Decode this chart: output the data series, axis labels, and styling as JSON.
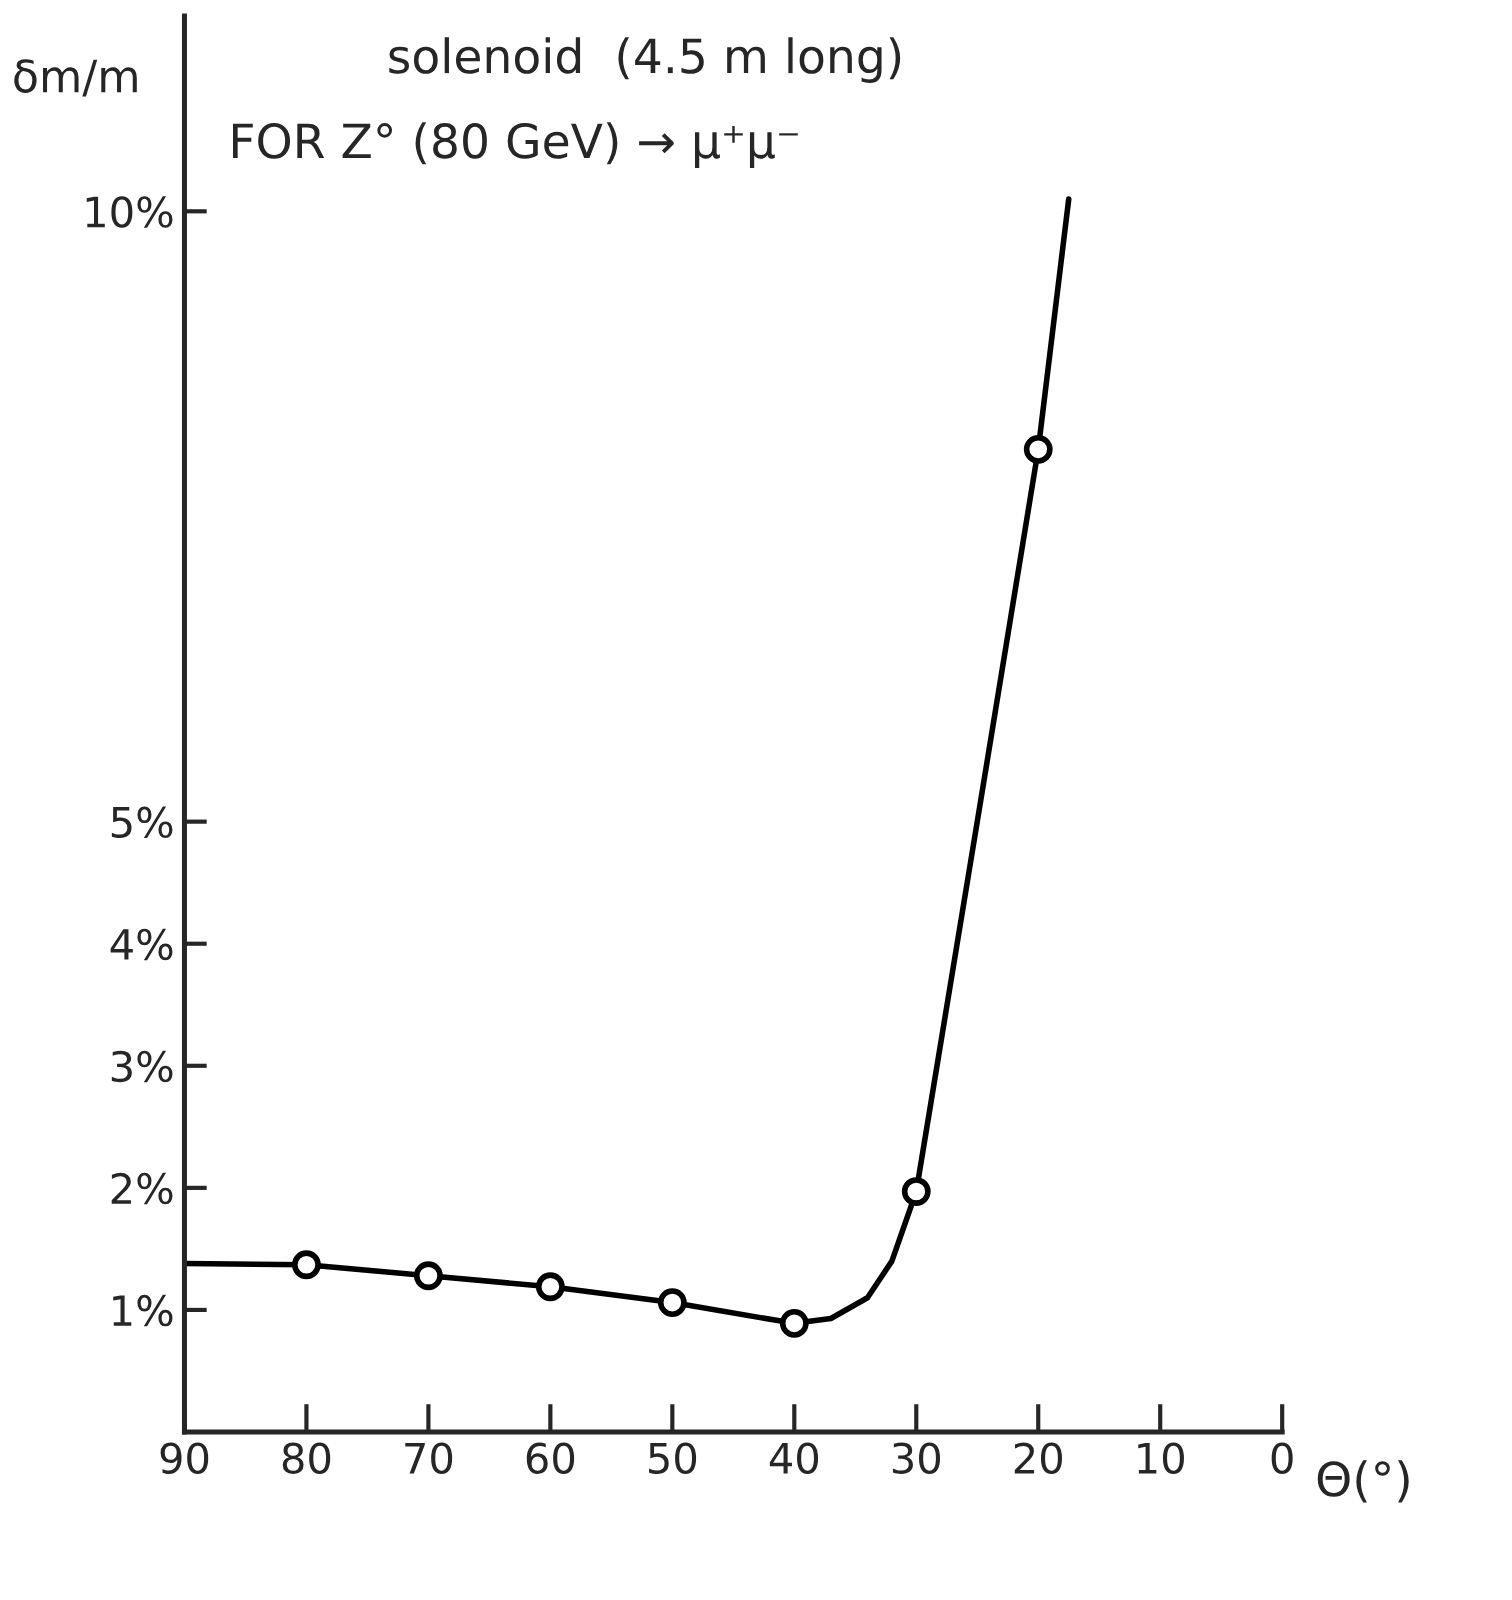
{
  "chart_data": {
    "type": "line",
    "title": "solenoid  (4.5 m long)",
    "subtitle": "FOR Z° (80 GeV) → μ⁺μ⁻",
    "xlabel": "Θ(°)",
    "ylabel": "δm/m",
    "xlim": [
      90,
      0
    ],
    "xticks": [
      90,
      80,
      70,
      60,
      50,
      40,
      30,
      20,
      10,
      0
    ],
    "ylim": [
      0,
      11.6
    ],
    "yticks": [
      {
        "value": 1,
        "label": "1%"
      },
      {
        "value": 2,
        "label": "2%"
      },
      {
        "value": 3,
        "label": "3%"
      },
      {
        "value": 4,
        "label": "4%"
      },
      {
        "value": 5,
        "label": "5%"
      },
      {
        "value": 10,
        "label": "10%"
      }
    ],
    "grid": false,
    "legend": false,
    "series": [
      {
        "color": "#000000",
        "marker": "none",
        "line_style": "solid",
        "x": [
          90,
          80,
          70,
          60,
          50,
          40,
          37,
          34,
          32,
          30,
          25,
          20,
          17.5
        ],
        "values": [
          1.38,
          1.37,
          1.28,
          1.19,
          1.06,
          0.89,
          0.93,
          1.1,
          1.4,
          1.97,
          5.0,
          8.05,
          10.1
        ]
      },
      {
        "type": "scatter",
        "color": "#000000",
        "marker": "circle",
        "x": [
          80,
          70,
          60,
          50,
          40,
          30,
          20
        ],
        "values": [
          1.37,
          1.28,
          1.19,
          1.06,
          0.89,
          1.97,
          8.05
        ]
      }
    ]
  }
}
